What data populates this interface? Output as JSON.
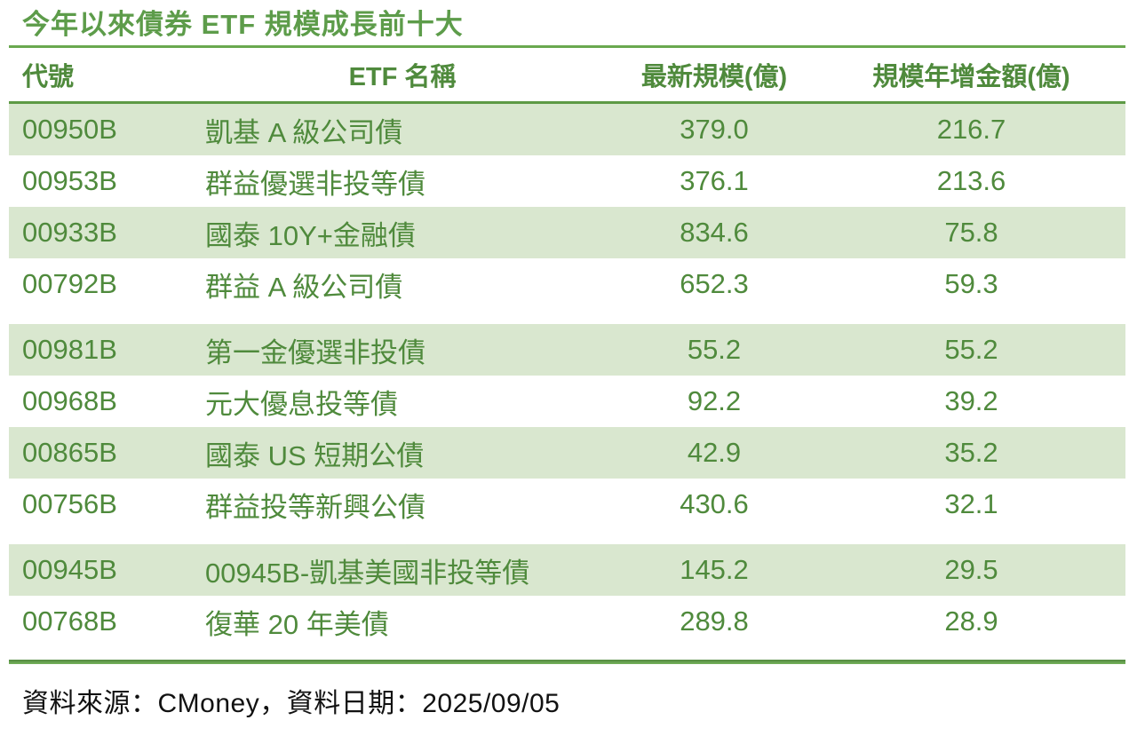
{
  "title": "今年以來債券 ETF 規模成長前十大",
  "theme": {
    "title_green": "#5d9c4a",
    "text_green": "#4f8a3c",
    "rule_green": "#6aa84f",
    "row_band_green": "#d9e7cf",
    "footer_text_color": "#111111",
    "background": "#ffffff"
  },
  "table": {
    "columns": [
      "代號",
      "ETF 名稱",
      "最新規模(億)",
      "規模年增金額(億)"
    ],
    "rows": [
      {
        "code": "00950B",
        "name": "凱基 A 級公司債",
        "scale": "379.0",
        "growth": "216.7"
      },
      {
        "code": "00953B",
        "name": "群益優選非投等債",
        "scale": "376.1",
        "growth": "213.6"
      },
      {
        "code": "00933B",
        "name": "國泰 10Y+金融債",
        "scale": "834.6",
        "growth": "75.8"
      },
      {
        "code": "00792B",
        "name": "群益 A 級公司債",
        "scale": "652.3",
        "growth": "59.3"
      },
      {
        "code": "00981B",
        "name": "第一金優選非投債",
        "scale": "55.2",
        "growth": "55.2"
      },
      {
        "code": "00968B",
        "name": "元大優息投等債",
        "scale": "92.2",
        "growth": "39.2"
      },
      {
        "code": "00865B",
        "name": "國泰 US 短期公債",
        "scale": "42.9",
        "growth": "35.2"
      },
      {
        "code": "00756B",
        "name": "群益投等新興公債",
        "scale": "430.6",
        "growth": "32.1"
      },
      {
        "code": "00945B",
        "name": "00945B-凱基美國非投等債",
        "scale": "145.2",
        "growth": "29.5"
      },
      {
        "code": "00768B",
        "name": "復華 20 年美債",
        "scale": "289.8",
        "growth": "28.9"
      }
    ]
  },
  "footer": {
    "text": "資料來源：CMoney，資料日期：2025/09/05"
  },
  "chart_data": {
    "type": "table",
    "title": "今年以來債券 ETF 規模成長前十大",
    "columns": [
      "代號",
      "ETF 名稱",
      "最新規模(億)",
      "規模年增金額(億)"
    ],
    "rows": [
      [
        "00950B",
        "凱基 A 級公司債",
        379.0,
        216.7
      ],
      [
        "00953B",
        "群益優選非投等債",
        376.1,
        213.6
      ],
      [
        "00933B",
        "國泰 10Y+金融債",
        834.6,
        75.8
      ],
      [
        "00792B",
        "群益 A 級公司債",
        652.3,
        59.3
      ],
      [
        "00981B",
        "第一金優選非投債",
        55.2,
        55.2
      ],
      [
        "00968B",
        "元大優息投等債",
        92.2,
        39.2
      ],
      [
        "00865B",
        "國泰 US 短期公債",
        42.9,
        35.2
      ],
      [
        "00756B",
        "群益投等新興公債",
        430.6,
        32.1
      ],
      [
        "00945B",
        "00945B-凱基美國非投等債",
        145.2,
        29.5
      ],
      [
        "00768B",
        "復華 20 年美債",
        289.8,
        28.9
      ]
    ],
    "source_note": "資料來源：CMoney，資料日期：2025/09/05",
    "layout_hints": {
      "row_banding": "alternating light-green/white starting green",
      "group_gaps_after_rows": [
        4,
        8
      ],
      "numeric_columns_alignment": "center",
      "text_columns_alignment": "left"
    }
  }
}
